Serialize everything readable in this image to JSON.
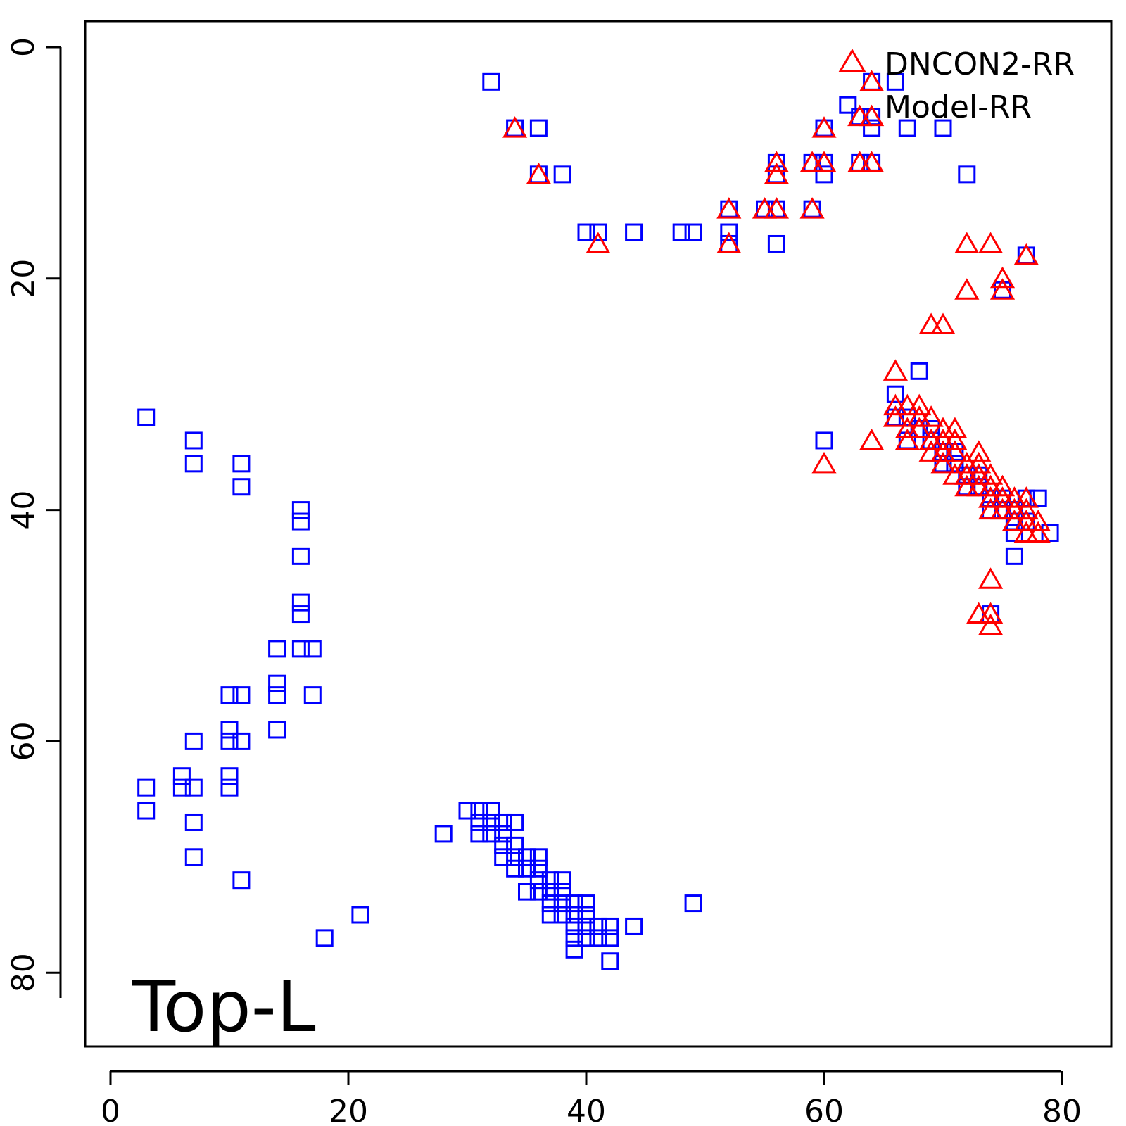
{
  "chart_data": {
    "type": "scatter",
    "xlim": [
      -2,
      84
    ],
    "ylim": [
      84,
      -2
    ],
    "y_inverted": true,
    "x_ticks": [
      0,
      20,
      40,
      60,
      80
    ],
    "y_ticks": [
      0,
      20,
      40,
      60,
      80
    ],
    "x_tick_labels": [
      "0",
      "20",
      "40",
      "60",
      "80"
    ],
    "y_tick_labels": [
      "0",
      "20",
      "40",
      "60",
      "80"
    ],
    "xlabel": "",
    "ylabel": "",
    "grid": false,
    "annotation": "Top-L",
    "legend_position": "top-right",
    "series": [
      {
        "name": "DNCON2-RR",
        "marker": "triangle",
        "color": "#ff0000",
        "points": [
          [
            34,
            7
          ],
          [
            36,
            11
          ],
          [
            41,
            17
          ],
          [
            52,
            14
          ],
          [
            52,
            17
          ],
          [
            55,
            14
          ],
          [
            56,
            10
          ],
          [
            56,
            11
          ],
          [
            56,
            14
          ],
          [
            59,
            10
          ],
          [
            59,
            14
          ],
          [
            60,
            7
          ],
          [
            60,
            10
          ],
          [
            60,
            36
          ],
          [
            63,
            6
          ],
          [
            63,
            10
          ],
          [
            64,
            3
          ],
          [
            64,
            6
          ],
          [
            64,
            10
          ],
          [
            64,
            34
          ],
          [
            66,
            28
          ],
          [
            66,
            31
          ],
          [
            66,
            32
          ],
          [
            67,
            31
          ],
          [
            67,
            33
          ],
          [
            67,
            34
          ],
          [
            68,
            31
          ],
          [
            68,
            32
          ],
          [
            68,
            33
          ],
          [
            69,
            24
          ],
          [
            69,
            32
          ],
          [
            69,
            34
          ],
          [
            69,
            35
          ],
          [
            70,
            24
          ],
          [
            70,
            33
          ],
          [
            70,
            34
          ],
          [
            70,
            35
          ],
          [
            70,
            36
          ],
          [
            71,
            33
          ],
          [
            71,
            34
          ],
          [
            71,
            35
          ],
          [
            71,
            37
          ],
          [
            72,
            17
          ],
          [
            72,
            21
          ],
          [
            72,
            36
          ],
          [
            72,
            37
          ],
          [
            72,
            38
          ],
          [
            73,
            35
          ],
          [
            73,
            36
          ],
          [
            73,
            37
          ],
          [
            73,
            38
          ],
          [
            73,
            49
          ],
          [
            74,
            17
          ],
          [
            74,
            37
          ],
          [
            74,
            38
          ],
          [
            74,
            39
          ],
          [
            74,
            40
          ],
          [
            74,
            46
          ],
          [
            74,
            49
          ],
          [
            74,
            50
          ],
          [
            75,
            20
          ],
          [
            75,
            21
          ],
          [
            75,
            38
          ],
          [
            75,
            39
          ],
          [
            75,
            40
          ],
          [
            76,
            39
          ],
          [
            76,
            40
          ],
          [
            76,
            41
          ],
          [
            77,
            18
          ],
          [
            77,
            39
          ],
          [
            77,
            40
          ],
          [
            77,
            41
          ],
          [
            77,
            42
          ],
          [
            78,
            41
          ],
          [
            78,
            42
          ]
        ]
      },
      {
        "name": "Model-RR",
        "marker": "square",
        "color": "#0000ff",
        "points": [
          [
            32,
            3
          ],
          [
            34,
            7
          ],
          [
            36,
            7
          ],
          [
            36,
            11
          ],
          [
            38,
            11
          ],
          [
            40,
            16
          ],
          [
            41,
            16
          ],
          [
            44,
            16
          ],
          [
            48,
            16
          ],
          [
            49,
            16
          ],
          [
            52,
            14
          ],
          [
            52,
            16
          ],
          [
            52,
            17
          ],
          [
            55,
            14
          ],
          [
            56,
            10
          ],
          [
            56,
            11
          ],
          [
            56,
            14
          ],
          [
            56,
            17
          ],
          [
            59,
            10
          ],
          [
            59,
            14
          ],
          [
            60,
            7
          ],
          [
            60,
            10
          ],
          [
            60,
            11
          ],
          [
            60,
            34
          ],
          [
            62,
            5
          ],
          [
            63,
            6
          ],
          [
            63,
            10
          ],
          [
            64,
            3
          ],
          [
            64,
            6
          ],
          [
            64,
            7
          ],
          [
            64,
            10
          ],
          [
            66,
            3
          ],
          [
            67,
            7
          ],
          [
            70,
            7
          ],
          [
            72,
            11
          ],
          [
            77,
            18
          ],
          [
            75,
            21
          ],
          [
            68,
            28
          ],
          [
            66,
            30
          ],
          [
            66,
            32
          ],
          [
            67,
            32
          ],
          [
            67,
            34
          ],
          [
            68,
            33
          ],
          [
            69,
            33
          ],
          [
            69,
            34
          ],
          [
            70,
            35
          ],
          [
            70,
            36
          ],
          [
            71,
            35
          ],
          [
            71,
            36
          ],
          [
            72,
            37
          ],
          [
            72,
            38
          ],
          [
            73,
            37
          ],
          [
            73,
            38
          ],
          [
            74,
            39
          ],
          [
            74,
            40
          ],
          [
            75,
            39
          ],
          [
            75,
            40
          ],
          [
            76,
            40
          ],
          [
            76,
            41
          ],
          [
            76,
            42
          ],
          [
            76,
            44
          ],
          [
            77,
            39
          ],
          [
            77,
            41
          ],
          [
            78,
            39
          ],
          [
            79,
            42
          ],
          [
            74,
            49
          ],
          [
            3,
            32
          ],
          [
            7,
            34
          ],
          [
            7,
            36
          ],
          [
            11,
            36
          ],
          [
            11,
            38
          ],
          [
            16,
            40
          ],
          [
            16,
            41
          ],
          [
            16,
            44
          ],
          [
            16,
            48
          ],
          [
            16,
            49
          ],
          [
            14,
            52
          ],
          [
            16,
            52
          ],
          [
            17,
            52
          ],
          [
            14,
            55
          ],
          [
            14,
            56
          ],
          [
            10,
            56
          ],
          [
            11,
            56
          ],
          [
            17,
            56
          ],
          [
            14,
            59
          ],
          [
            10,
            59
          ],
          [
            10,
            60
          ],
          [
            11,
            60
          ],
          [
            7,
            60
          ],
          [
            6,
            63
          ],
          [
            10,
            63
          ],
          [
            3,
            64
          ],
          [
            6,
            64
          ],
          [
            7,
            64
          ],
          [
            10,
            64
          ],
          [
            3,
            66
          ],
          [
            7,
            67
          ],
          [
            7,
            70
          ],
          [
            11,
            72
          ],
          [
            21,
            75
          ],
          [
            18,
            77
          ],
          [
            30,
            66
          ],
          [
            31,
            66
          ],
          [
            32,
            66
          ],
          [
            31,
            67
          ],
          [
            32,
            67
          ],
          [
            33,
            67
          ],
          [
            34,
            67
          ],
          [
            31,
            68
          ],
          [
            32,
            68
          ],
          [
            33,
            68
          ],
          [
            28,
            68
          ],
          [
            33,
            69
          ],
          [
            34,
            69
          ],
          [
            33,
            70
          ],
          [
            34,
            70
          ],
          [
            35,
            70
          ],
          [
            36,
            70
          ],
          [
            34,
            71
          ],
          [
            35,
            71
          ],
          [
            36,
            71
          ],
          [
            36,
            72
          ],
          [
            37,
            72
          ],
          [
            38,
            72
          ],
          [
            35,
            73
          ],
          [
            36,
            73
          ],
          [
            37,
            73
          ],
          [
            38,
            73
          ],
          [
            37,
            74
          ],
          [
            38,
            74
          ],
          [
            39,
            74
          ],
          [
            40,
            74
          ],
          [
            49,
            74
          ],
          [
            37,
            75
          ],
          [
            38,
            75
          ],
          [
            39,
            75
          ],
          [
            40,
            75
          ],
          [
            39,
            76
          ],
          [
            40,
            76
          ],
          [
            41,
            76
          ],
          [
            42,
            76
          ],
          [
            44,
            76
          ],
          [
            39,
            77
          ],
          [
            40,
            77
          ],
          [
            41,
            77
          ],
          [
            42,
            77
          ],
          [
            39,
            78
          ],
          [
            42,
            79
          ]
        ]
      }
    ]
  }
}
